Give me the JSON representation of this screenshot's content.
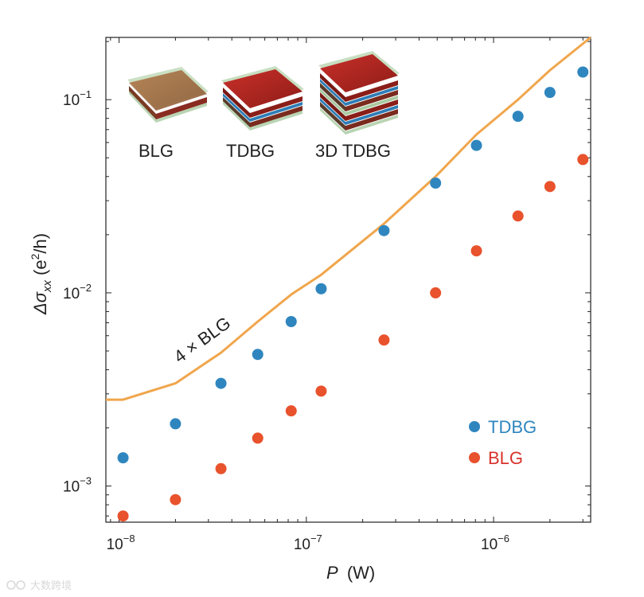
{
  "chart_data": {
    "type": "scatter",
    "xscale": "log",
    "yscale": "log",
    "xlim": [
      8.5e-09,
      3.3e-06
    ],
    "ylim": [
      0.00065,
      0.21
    ],
    "xlabel_main": "P",
    "xlabel_unit": "(W)",
    "ylabel_main": "Δσ",
    "ylabel_sub": "xx",
    "ylabel_unit_pre": "(e",
    "ylabel_unit_sup": "2",
    "ylabel_unit_post": "/h)",
    "x_ticks": [
      {
        "value": 1e-08,
        "base": "10",
        "exp": "−8"
      },
      {
        "value": 1e-07,
        "base": "10",
        "exp": "−7"
      },
      {
        "value": 1e-06,
        "base": "10",
        "exp": "−6"
      }
    ],
    "y_ticks": [
      {
        "value": 0.001,
        "base": "10",
        "exp": "−3"
      },
      {
        "value": 0.01,
        "base": "10",
        "exp": "−2"
      },
      {
        "value": 0.1,
        "base": "10",
        "exp": "−1"
      }
    ],
    "series": [
      {
        "name": "TDBG",
        "color": "#2f86bf",
        "marker": "circle",
        "x": [
          1.05e-08,
          2e-08,
          3.5e-08,
          5.5e-08,
          8.3e-08,
          1.2e-07,
          2.6e-07,
          4.9e-07,
          8.1e-07,
          1.35e-06,
          2e-06,
          3e-06
        ],
        "y": [
          0.0014,
          0.0021,
          0.0034,
          0.0048,
          0.0071,
          0.0105,
          0.021,
          0.037,
          0.058,
          0.082,
          0.109,
          0.139
        ]
      },
      {
        "name": "BLG",
        "color": "#e8522c",
        "marker": "circle",
        "x": [
          1.05e-08,
          2e-08,
          3.5e-08,
          5.5e-08,
          8.3e-08,
          1.2e-07,
          2.6e-07,
          4.9e-07,
          8.1e-07,
          1.35e-06,
          2e-06,
          3e-06
        ],
        "y": [
          0.0007,
          0.00085,
          0.00123,
          0.00177,
          0.00245,
          0.0031,
          0.0057,
          0.01,
          0.0165,
          0.025,
          0.0355,
          0.049
        ]
      },
      {
        "name": "4 × BLG",
        "color": "#f0a64c",
        "marker": "line",
        "x": [
          8.5e-09,
          1.05e-08,
          2e-08,
          3.5e-08,
          5.5e-08,
          8.3e-08,
          1.2e-07,
          2.6e-07,
          4.9e-07,
          8.1e-07,
          1.35e-06,
          2e-06,
          3.3e-06
        ],
        "y": [
          0.0028,
          0.0028,
          0.0034,
          0.0049,
          0.0071,
          0.0098,
          0.0124,
          0.0228,
          0.04,
          0.066,
          0.1,
          0.142,
          0.21
        ]
      }
    ],
    "annotations": [
      {
        "text": "4 × BLG",
        "color": "#f0a64c"
      }
    ],
    "legend": {
      "placement": "bottom-right",
      "entries": [
        {
          "label": "TDBG",
          "color": "#2f86bf"
        },
        {
          "label": "BLG",
          "color": "#e8522c"
        }
      ]
    },
    "inset": {
      "placement": "top-left",
      "items": [
        {
          "label": "BLG"
        },
        {
          "label": "TDBG"
        },
        {
          "label": "3D TDBG"
        }
      ]
    }
  },
  "watermark": {
    "text": "大数跨境"
  }
}
